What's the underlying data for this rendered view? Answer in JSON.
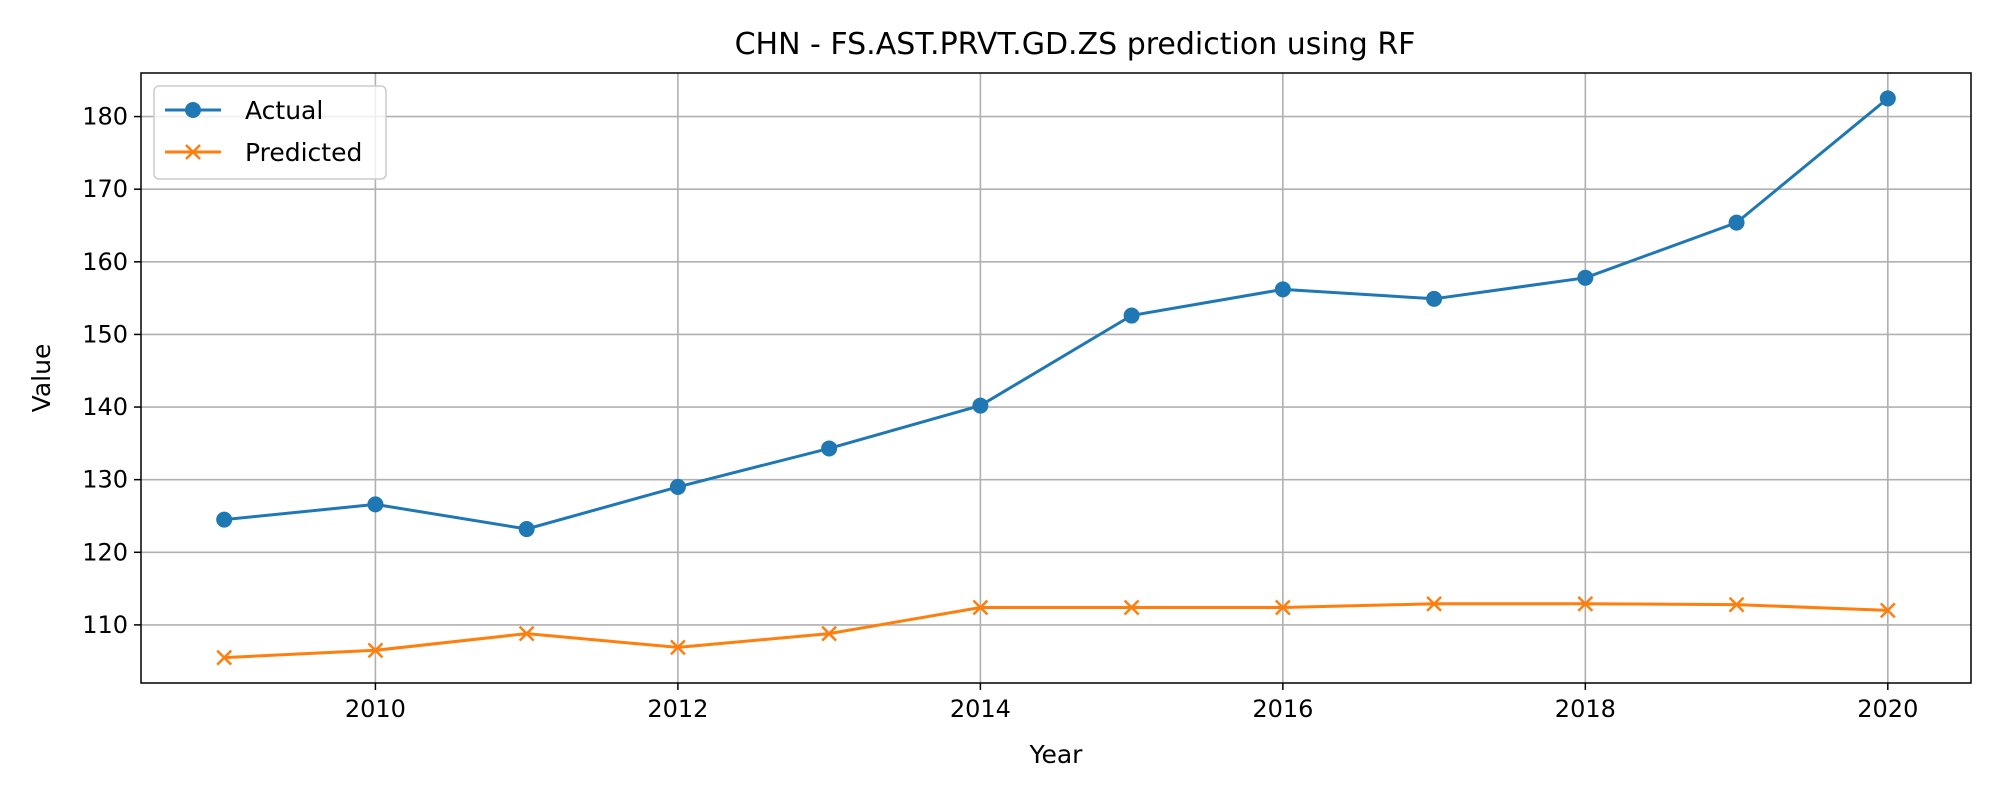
{
  "chart_data": {
    "type": "line",
    "title": "CHN - FS.AST.PRVT.GD.ZS prediction using RF",
    "xlabel": "Year",
    "ylabel": "Value",
    "x": [
      2009,
      2010,
      2011,
      2012,
      2013,
      2014,
      2015,
      2016,
      2017,
      2018,
      2019,
      2020
    ],
    "xlim": [
      2008.45,
      2020.55
    ],
    "ylim": [
      102,
      186
    ],
    "xticks": [
      2010,
      2012,
      2014,
      2016,
      2018,
      2020
    ],
    "yticks": [
      110,
      120,
      130,
      140,
      150,
      160,
      170,
      180
    ],
    "grid": true,
    "legend_position": "top-left",
    "series": [
      {
        "name": "Actual",
        "color": "#1f77b4",
        "marker": "circle",
        "values": [
          124.5,
          126.6,
          123.2,
          129.0,
          134.3,
          140.2,
          152.6,
          156.2,
          154.9,
          157.8,
          165.4,
          182.5
        ]
      },
      {
        "name": "Predicted",
        "color": "#ff7f0e",
        "marker": "x",
        "values": [
          105.5,
          106.5,
          108.8,
          106.9,
          108.8,
          112.4,
          112.4,
          112.4,
          112.9,
          112.9,
          112.8,
          112.0
        ]
      }
    ]
  }
}
